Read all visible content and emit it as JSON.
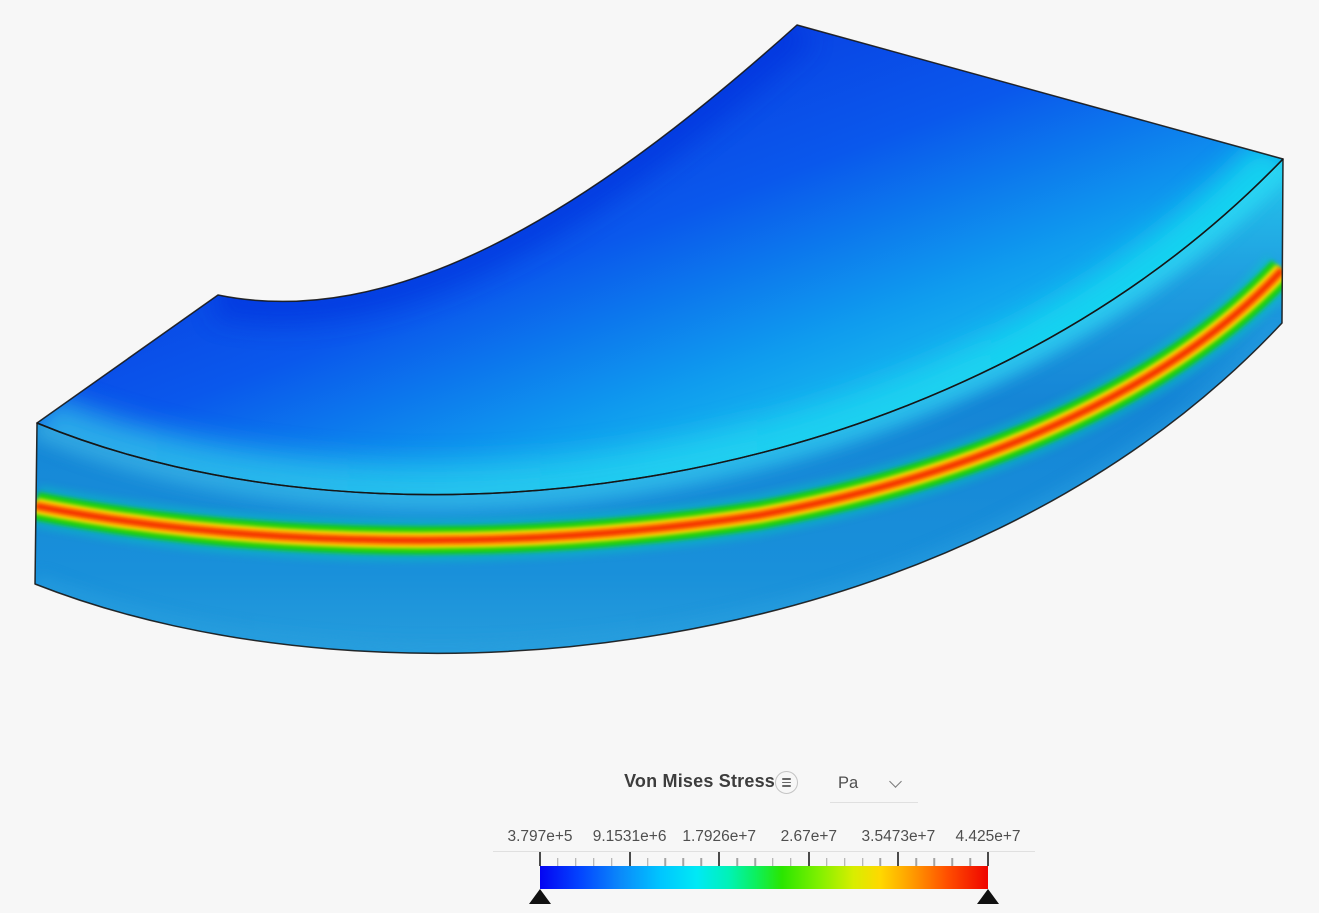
{
  "app": {
    "background": "#f7f7f7",
    "viewport_description": "3D contour render of a curved quarter-ring beam with a high-stress band at mid-height"
  },
  "legend": {
    "title": "Von Mises Stress",
    "menu_icon": "hamburger-circle",
    "unit": "Pa",
    "unit_dropdown_icon": "chevron-down",
    "scale_labels": [
      "3.797e+5",
      "9.1531e+6",
      "1.7926e+7",
      "2.67e+7",
      "3.5473e+7",
      "4.425e+7"
    ],
    "range_min": "3.797e+5",
    "range_max": "4.425e+7",
    "ticks": {
      "major_count": 6,
      "minors_per_gap": 4
    },
    "colormap": [
      "#0404f2 0%",
      "#0345ff 9%",
      "#0b8afa 18%",
      "#00c6ff 27%",
      "#00e9f5 35%",
      "#00f2b8 42%",
      "#0cf060 48%",
      "#2ae600 54%",
      "#7df000 62%",
      "#d8ee00 70%",
      "#ffd800 76%",
      "#ff9c00 83%",
      "#ff4e00 91%",
      "#ef0400 100%"
    ],
    "colors": {
      "title_text": "#3d3d3d",
      "label_text": "#4f4f4f",
      "underline": "#e0e0e0",
      "tick_major": "#4a4a4a",
      "tick_minor": "#a3a3a3",
      "marker": "#111111",
      "icon_border": "#c4c4c4",
      "icon_glyph": "#666666",
      "unit_text": "#4f4f4f",
      "chevron": "#7a7a7a"
    }
  }
}
